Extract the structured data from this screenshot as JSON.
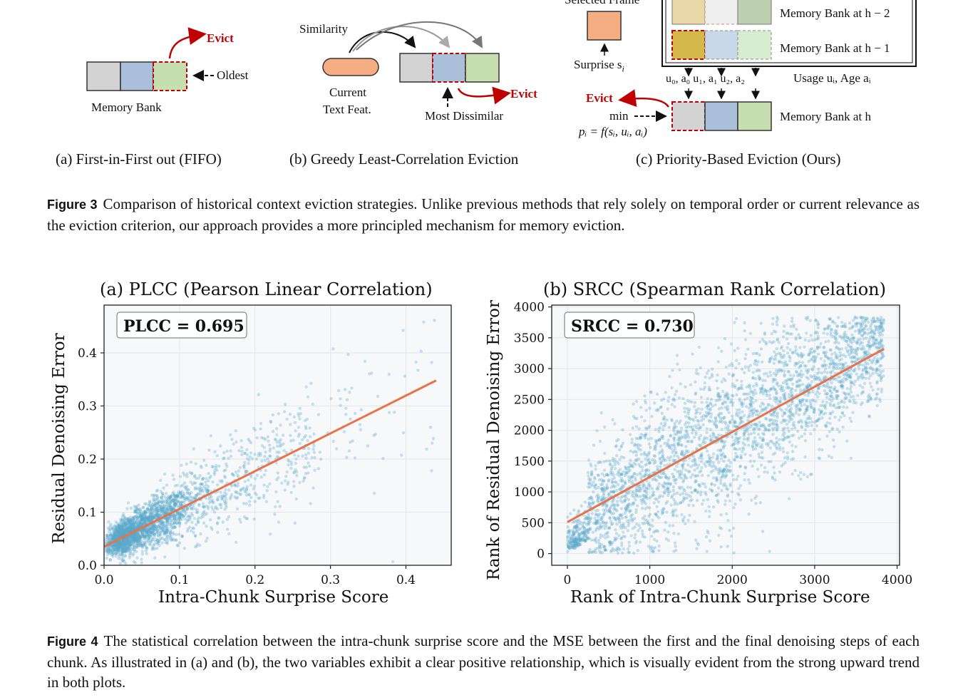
{
  "figure3": {
    "a": {
      "evict": "Evict",
      "oldest": "Oldest",
      "bank": "Memory Bank",
      "caption": "(a) First-in-First out (FIFO)"
    },
    "b": {
      "similarity": "Similarity",
      "current": "Current",
      "textfeat": "Text Feat.",
      "evict": "Evict",
      "dissimilar": "Most Dissimilar",
      "caption": "(b) Greedy Least-Correlation Eviction"
    },
    "c": {
      "selected": "Selected Frame",
      "surprise": "Surprise s",
      "surprise_sub": "i",
      "bank_h2": "Memory Bank at h − 2",
      "bank_h1": "Memory Bank at h − 1",
      "usage": "u₀, a₀   u₁, a₁   u₂, a₂",
      "usage_label": "Usage uᵢ, Age aᵢ",
      "evict": "Evict",
      "min": "min",
      "formula": "pᵢ = f(sᵢ, uᵢ, aᵢ)",
      "bank_h": "Memory Bank at h",
      "caption": "(c) Priority-Based Eviction (Ours)"
    },
    "label": "Figure 3",
    "text": "Comparison of historical context eviction strategies. Unlike previous methods that rely solely on temporal order or current relevance as the eviction criterion, our approach provides a more principled mechanism for memory eviction."
  },
  "chart_data": [
    {
      "type": "scatter",
      "title": "(a) PLCC (Pearson Linear Correlation)",
      "xlabel": "Intra-Chunk Surprise Score",
      "ylabel": "Residual Denoising Error",
      "annotation": "PLCC = 0.695",
      "xlim": [
        0.0,
        0.46
      ],
      "ylim": [
        0.0,
        0.49
      ],
      "xticks": [
        "0.0",
        "0.1",
        "0.2",
        "0.3",
        "0.4"
      ],
      "yticks": [
        "0.0",
        "0.1",
        "0.2",
        "0.3",
        "0.4"
      ],
      "fit_line": {
        "x": [
          0.0,
          0.44
        ],
        "y": [
          0.035,
          0.348
        ]
      },
      "grid": true,
      "point_color": "#5aa7c9",
      "line_color": "#e8734a"
    },
    {
      "type": "scatter",
      "title": "(b) SRCC (Spearman Rank Correlation)",
      "xlabel": "Rank of Intra-Chunk Surprise Score",
      "ylabel": "Rank of Residual Denoising Error",
      "annotation": "SRCC = 0.730",
      "xlim": [
        -190,
        4030
      ],
      "ylim": [
        -190,
        4030
      ],
      "xticks": [
        "0",
        "1000",
        "2000",
        "3000",
        "4000"
      ],
      "yticks": [
        "0",
        "500",
        "1000",
        "1500",
        "2000",
        "2500",
        "3000",
        "3500",
        "4000"
      ],
      "fit_line": {
        "x": [
          0,
          3840
        ],
        "y": [
          510,
          3320
        ]
      },
      "grid": true,
      "point_color": "#5aa7c9",
      "line_color": "#e8734a"
    }
  ],
  "figure4": {
    "label": "Figure 4",
    "text": "The statistical correlation between the intra-chunk surprise score and the MSE between the first and the final denoising steps of each chunk. As illustrated in (a) and (b), the two variables exhibit a clear positive relationship, which is visually evident from the strong upward trend in both plots."
  }
}
